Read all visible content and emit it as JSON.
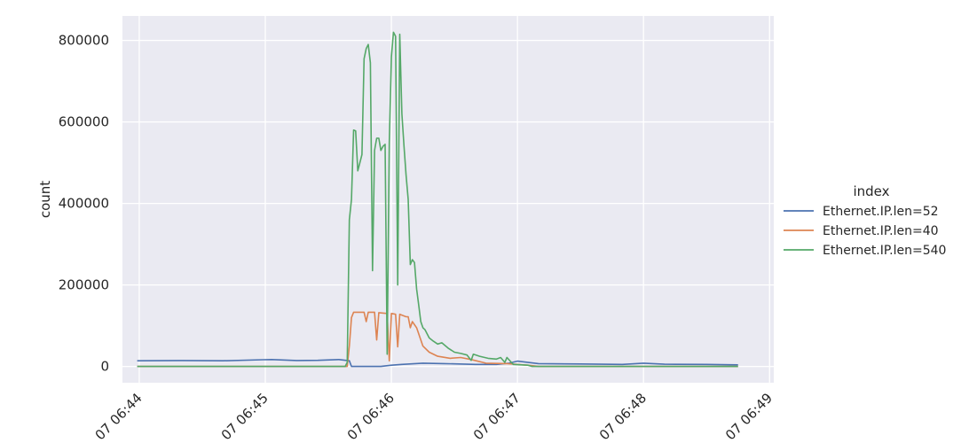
{
  "chart_data": {
    "type": "line",
    "xlabel": "",
    "ylabel": "count",
    "legend_title": "index",
    "legend_placement": "right",
    "grid": true,
    "background": "#eaeaf2",
    "x_range": [
      "06:43:52",
      "06:49:02"
    ],
    "ylim": [
      -40000,
      860000
    ],
    "x_ticks": [
      {
        "t": "06:44:00",
        "label": "07 06:44"
      },
      {
        "t": "06:45:00",
        "label": "07 06:45"
      },
      {
        "t": "06:46:00",
        "label": "07 06:46"
      },
      {
        "t": "06:47:00",
        "label": "07 06:47"
      },
      {
        "t": "06:48:00",
        "label": "07 06:48"
      },
      {
        "t": "06:49:00",
        "label": "07 06:49"
      }
    ],
    "y_ticks": [
      0,
      200000,
      400000,
      600000,
      800000
    ],
    "y_tick_labels": [
      "0",
      "200000",
      "400000",
      "600000",
      "800000"
    ],
    "series": [
      {
        "name": "Ethernet.IP.len=52",
        "color": "#4c72b0",
        "points": [
          [
            "06:43:59",
            14000
          ],
          [
            "06:44:20",
            14500
          ],
          [
            "06:44:40",
            14000
          ],
          [
            "06:44:59",
            16500
          ],
          [
            "06:45:03",
            17000
          ],
          [
            "06:45:15",
            14500
          ],
          [
            "06:45:25",
            15000
          ],
          [
            "06:45:35",
            17000
          ],
          [
            "06:45:40",
            14000
          ],
          [
            "06:45:41",
            0
          ],
          [
            "06:45:55",
            0
          ],
          [
            "06:46:00",
            3000
          ],
          [
            "06:46:05",
            5000
          ],
          [
            "06:46:15",
            8000
          ],
          [
            "06:46:25",
            7000
          ],
          [
            "06:46:40",
            5000
          ],
          [
            "06:46:50",
            5000
          ],
          [
            "06:46:56",
            8000
          ],
          [
            "06:47:00",
            13000
          ],
          [
            "06:47:10",
            7000
          ],
          [
            "06:47:30",
            6000
          ],
          [
            "06:47:50",
            5000
          ],
          [
            "06:48:00",
            8000
          ],
          [
            "06:48:10",
            5500
          ],
          [
            "06:48:30",
            5000
          ],
          [
            "06:48:45",
            4000
          ]
        ]
      },
      {
        "name": "Ethernet.IP.len=40",
        "color": "#dd8452",
        "points": [
          [
            "06:43:59",
            0
          ],
          [
            "06:45:39",
            0
          ],
          [
            "06:45:40",
            50000
          ],
          [
            "06:45:41",
            120000
          ],
          [
            "06:45:42",
            133000
          ],
          [
            "06:45:47",
            133000
          ],
          [
            "06:45:48",
            110000
          ],
          [
            "06:45:49",
            133000
          ],
          [
            "06:45:52",
            133000
          ],
          [
            "06:45:53",
            65000
          ],
          [
            "06:45:54",
            132000
          ],
          [
            "06:45:58",
            130000
          ],
          [
            "06:45:59",
            14000
          ],
          [
            "06:46:00",
            130000
          ],
          [
            "06:46:02",
            128000
          ],
          [
            "06:46:03",
            48000
          ],
          [
            "06:46:04",
            128000
          ],
          [
            "06:46:07",
            122000
          ],
          [
            "06:46:08",
            122000
          ],
          [
            "06:46:09",
            95000
          ],
          [
            "06:46:10",
            110000
          ],
          [
            "06:46:12",
            95000
          ],
          [
            "06:46:15",
            50000
          ],
          [
            "06:46:18",
            35000
          ],
          [
            "06:46:22",
            25000
          ],
          [
            "06:46:28",
            20000
          ],
          [
            "06:46:33",
            22000
          ],
          [
            "06:46:38",
            17000
          ],
          [
            "06:46:45",
            8000
          ],
          [
            "06:46:55",
            7000
          ],
          [
            "06:47:05",
            3000
          ],
          [
            "06:47:10",
            0
          ],
          [
            "06:48:45",
            0
          ]
        ]
      },
      {
        "name": "Ethernet.IP.len=540",
        "color": "#55a868",
        "points": [
          [
            "06:43:59",
            0
          ],
          [
            "06:45:38",
            0
          ],
          [
            "06:45:39",
            10000
          ],
          [
            "06:45:40",
            360000
          ],
          [
            "06:45:41",
            410000
          ],
          [
            "06:45:42",
            580000
          ],
          [
            "06:45:43",
            578000
          ],
          [
            "06:45:44",
            480000
          ],
          [
            "06:45:45",
            500000
          ],
          [
            "06:45:46",
            520000
          ],
          [
            "06:45:47",
            755000
          ],
          [
            "06:45:48",
            780000
          ],
          [
            "06:45:49",
            790000
          ],
          [
            "06:45:50",
            745000
          ],
          [
            "06:45:51",
            235000
          ],
          [
            "06:45:52",
            530000
          ],
          [
            "06:45:53",
            560000
          ],
          [
            "06:45:54",
            560000
          ],
          [
            "06:45:55",
            530000
          ],
          [
            "06:45:56",
            540000
          ],
          [
            "06:45:57",
            545000
          ],
          [
            "06:45:58",
            30000
          ],
          [
            "06:45:59",
            550000
          ],
          [
            "06:46:00",
            760000
          ],
          [
            "06:46:01",
            820000
          ],
          [
            "06:46:02",
            810000
          ],
          [
            "06:46:03",
            200000
          ],
          [
            "06:46:04",
            815000
          ],
          [
            "06:46:05",
            620000
          ],
          [
            "06:46:06",
            540000
          ],
          [
            "06:46:07",
            470000
          ],
          [
            "06:46:08",
            410000
          ],
          [
            "06:46:09",
            250000
          ],
          [
            "06:46:10",
            262000
          ],
          [
            "06:46:11",
            255000
          ],
          [
            "06:46:12",
            190000
          ],
          [
            "06:46:13",
            150000
          ],
          [
            "06:46:14",
            110000
          ],
          [
            "06:46:15",
            95000
          ],
          [
            "06:46:16",
            90000
          ],
          [
            "06:46:18",
            70000
          ],
          [
            "06:46:20",
            62000
          ],
          [
            "06:46:22",
            55000
          ],
          [
            "06:46:24",
            58000
          ],
          [
            "06:46:27",
            45000
          ],
          [
            "06:46:30",
            35000
          ],
          [
            "06:46:33",
            32000
          ],
          [
            "06:46:36",
            28000
          ],
          [
            "06:46:38",
            15000
          ],
          [
            "06:46:39",
            30000
          ],
          [
            "06:46:42",
            25000
          ],
          [
            "06:46:46",
            20000
          ],
          [
            "06:46:50",
            18000
          ],
          [
            "06:46:52",
            22000
          ],
          [
            "06:46:54",
            10000
          ],
          [
            "06:46:55",
            22000
          ],
          [
            "06:46:58",
            5000
          ],
          [
            "06:47:05",
            3000
          ],
          [
            "06:47:07",
            0
          ],
          [
            "06:48:45",
            0
          ]
        ]
      }
    ]
  }
}
